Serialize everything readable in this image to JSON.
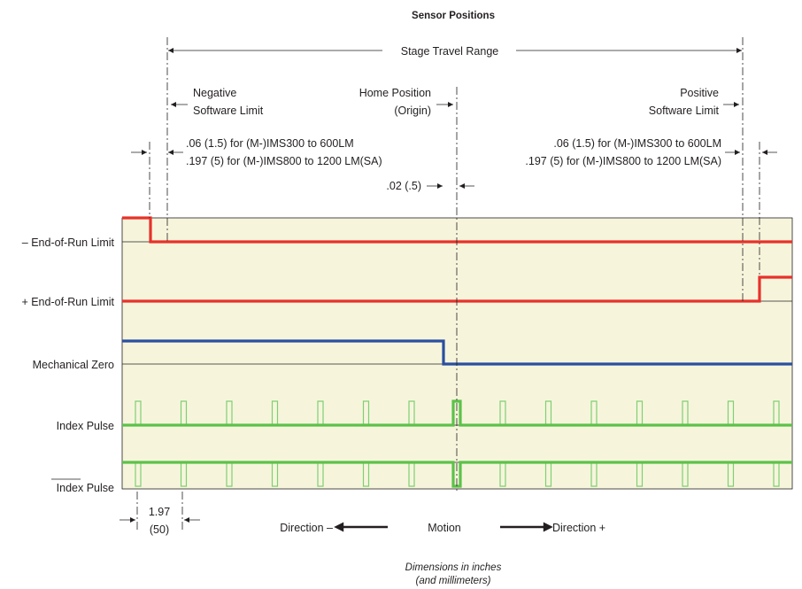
{
  "title": "Sensor Positions",
  "travel_label": "Stage Travel Range",
  "markers": {
    "negative_limit": [
      "Negative",
      "Software Limit"
    ],
    "home_position": [
      "Home Position",
      "(Origin)"
    ],
    "positive_limit": [
      "Positive",
      "Software Limit"
    ]
  },
  "offsets": {
    "left": [
      ".06 (1.5) for (M-)IMS300 to 600LM",
      ".197 (5) for (M-)IMS800 to 1200 LM(SA)"
    ],
    "right": [
      ".06 (1.5) for (M-)IMS300 to 600LM",
      ".197 (5) for (M-)IMS800 to 1200 LM(SA)"
    ],
    "home": ".02 (.5)"
  },
  "signals": [
    {
      "label": "– End-of-Run Limit"
    },
    {
      "label": "+ End-of-Run Limit"
    },
    {
      "label": "Mechanical Zero"
    },
    {
      "label": "Index Pulse"
    },
    {
      "label": "Index Pulse"
    }
  ],
  "pulse_spacing": [
    "1.97",
    "(50)"
  ],
  "motion": {
    "negative": "Direction –",
    "label": "Motion",
    "positive": "Direction +"
  },
  "units_note": [
    "Dimensions in inches",
    "(and millimeters)"
  ],
  "colors": {
    "panel_bg": "#f6f5dc",
    "limit_signal": "#e8312a",
    "zero_signal": "#2a4fa0",
    "index_signal": "#5cc24a",
    "pulse_outline": "#7fcf73"
  }
}
